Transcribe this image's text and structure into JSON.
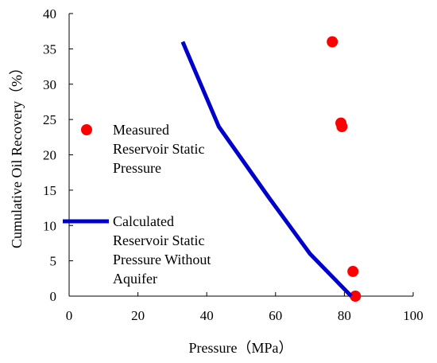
{
  "chart_data": {
    "type": "scatter",
    "title": "",
    "xlabel": "Pressure（MPa）",
    "ylabel": "Cumulative Oil Recovery（%）",
    "xlim": [
      0,
      100
    ],
    "ylim": [
      0,
      40
    ],
    "xticks": [
      "0",
      "20",
      "40",
      "60",
      "80",
      "100"
    ],
    "yticks": [
      "0",
      "5",
      "10",
      "15",
      "20",
      "25",
      "30",
      "35",
      "40"
    ],
    "grid": false,
    "legend_position": "left",
    "series": [
      {
        "name": "Measured Reservoir Static Pressure",
        "kind": "scatter",
        "color": "#ff0000",
        "x": [
          76.5,
          79.0,
          79.3,
          82.5,
          83.2
        ],
        "y": [
          36.0,
          24.5,
          24.0,
          3.5,
          0.0
        ]
      },
      {
        "name": "Calculated Reservoir Static Pressure Without Aquifer",
        "kind": "line",
        "color": "#0000cc",
        "x": [
          33.0,
          43.5,
          58.0,
          70.0,
          77.0,
          82.0
        ],
        "y": [
          36.0,
          24.0,
          14.0,
          6.0,
          2.5,
          0.0
        ]
      }
    ]
  },
  "legend": {
    "measured_lines": [
      "Measured",
      "Reservoir Static",
      "Pressure"
    ],
    "calculated_lines": [
      "Calculated",
      "Reservoir Static",
      "Pressure Without",
      "Aquifer"
    ]
  }
}
